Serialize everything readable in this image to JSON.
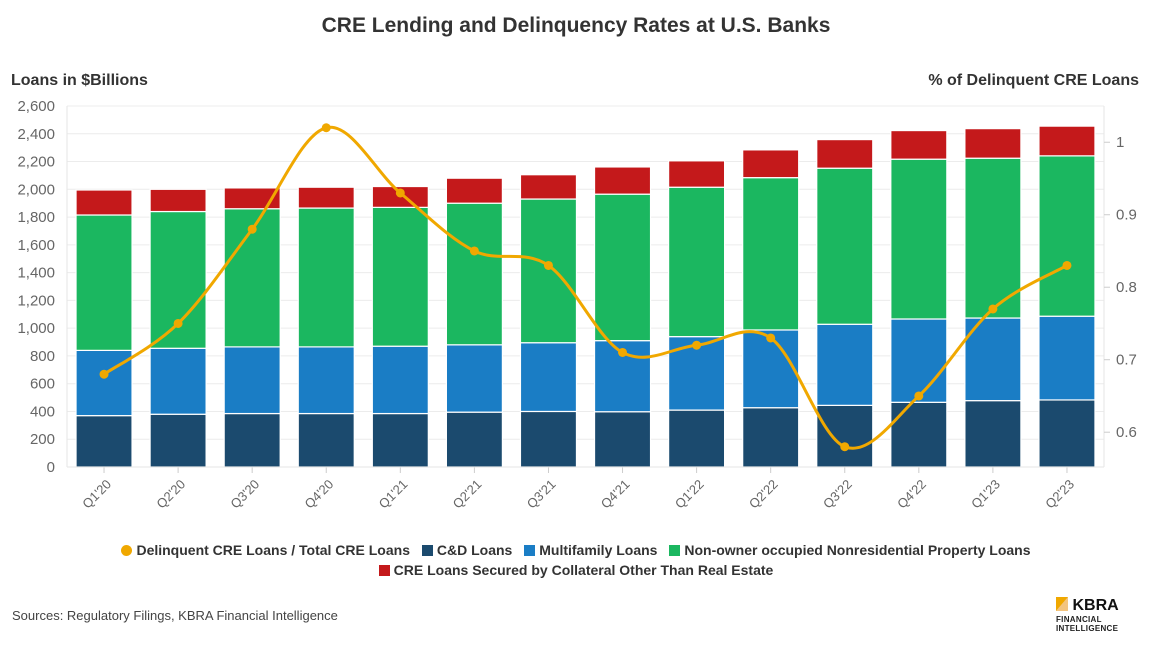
{
  "chart_data": {
    "type": "bar",
    "stacked": true,
    "title": "CRE Lending and Delinquency Rates at U.S. Banks",
    "ylabel": "Loans in $Billions",
    "ylabel_right": "% of Delinquent CRE Loans",
    "ylim": [
      0,
      2600
    ],
    "ylim_right": [
      0.552,
      1.05
    ],
    "yticks": [
      "0",
      "200",
      "400",
      "600",
      "800",
      "1,000",
      "1,200",
      "1,400",
      "1,600",
      "1,800",
      "2,000",
      "2,200",
      "2,400",
      "2,600"
    ],
    "yticks_right": [
      "0.6",
      "0.7",
      "0.8",
      "0.9",
      "1"
    ],
    "grid": true,
    "legend_position": "bottom",
    "categories": [
      "Q1'20",
      "Q2'20",
      "Q3'20",
      "Q4'20",
      "Q1'21",
      "Q2'21",
      "Q3'21",
      "Q4'21",
      "Q1'22",
      "Q2'22",
      "Q3'22",
      "Q4'22",
      "Q1'23",
      "Q2'23"
    ],
    "series": [
      {
        "name": "C&D Loans",
        "color": "#1b4a6e",
        "values": [
          370,
          380,
          385,
          385,
          385,
          395,
          400,
          398,
          410,
          427,
          444,
          466,
          478,
          483
        ]
      },
      {
        "name": "Multifamily Loans",
        "color": "#1a7dc5",
        "values": [
          470,
          475,
          480,
          480,
          485,
          485,
          495,
          512,
          529,
          560,
          584,
          600,
          595,
          603
        ]
      },
      {
        "name": "Non-owner occupied Nonresidential Property Loans",
        "color": "#1bb760",
        "values": [
          975,
          985,
          995,
          1000,
          1000,
          1020,
          1035,
          1055,
          1076,
          1097,
          1124,
          1151,
          1151,
          1155
        ]
      },
      {
        "name": "CRE Loans Secured by Collateral Other Than Real Estate",
        "color": "#c4191b",
        "values": [
          180,
          160,
          150,
          150,
          150,
          180,
          175,
          196,
          190,
          200,
          206,
          206,
          213,
          214
        ]
      }
    ],
    "line_series": {
      "name": "Delinquent CRE Loans / Total CRE Loans",
      "color": "#f0a800",
      "axis": "right",
      "values": [
        0.68,
        0.75,
        0.88,
        1.02,
        0.93,
        0.85,
        0.83,
        0.71,
        0.72,
        0.73,
        0.58,
        0.65,
        0.77,
        0.83
      ]
    }
  },
  "source": "Sources: Regulatory Filings, KBRA Financial Intelligence",
  "logo": {
    "name": "KBRA",
    "sub1": "FINANCIAL",
    "sub2": "INTELLIGENCE"
  }
}
